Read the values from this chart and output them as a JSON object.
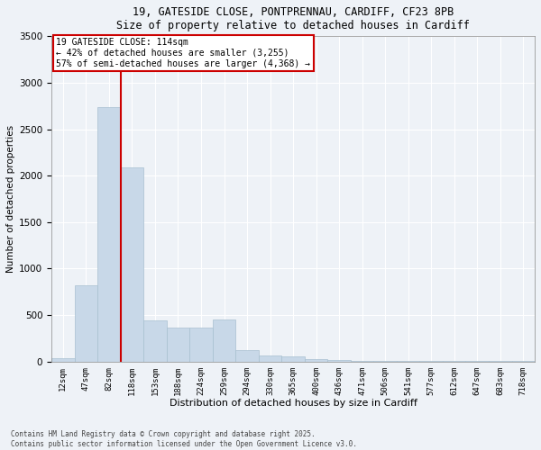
{
  "title_line1": "19, GATESIDE CLOSE, PONTPRENNAU, CARDIFF, CF23 8PB",
  "title_line2": "Size of property relative to detached houses in Cardiff",
  "xlabel": "Distribution of detached houses by size in Cardiff",
  "ylabel": "Number of detached properties",
  "bar_labels": [
    "12sqm",
    "47sqm",
    "82sqm",
    "118sqm",
    "153sqm",
    "188sqm",
    "224sqm",
    "259sqm",
    "294sqm",
    "330sqm",
    "365sqm",
    "400sqm",
    "436sqm",
    "471sqm",
    "506sqm",
    "541sqm",
    "577sqm",
    "612sqm",
    "647sqm",
    "683sqm",
    "718sqm"
  ],
  "bar_values": [
    40,
    820,
    2740,
    2090,
    440,
    370,
    370,
    450,
    120,
    70,
    55,
    25,
    15,
    8,
    5,
    4,
    3,
    3,
    3,
    3,
    3
  ],
  "bar_color": "#c8d8e8",
  "bar_edgecolor": "#a8c0d0",
  "vline_x_index": 3,
  "vline_color": "#cc0000",
  "ylim": [
    0,
    3500
  ],
  "yticks": [
    0,
    500,
    1000,
    1500,
    2000,
    2500,
    3000,
    3500
  ],
  "annotation_text": "19 GATESIDE CLOSE: 114sqm\n← 42% of detached houses are smaller (3,255)\n57% of semi-detached houses are larger (4,368) →",
  "annotation_box_color": "#ffffff",
  "annotation_box_edgecolor": "#cc0000",
  "footnote_line1": "Contains HM Land Registry data © Crown copyright and database right 2025.",
  "footnote_line2": "Contains public sector information licensed under the Open Government Licence v3.0.",
  "background_color": "#eef2f7",
  "grid_color": "#ffffff"
}
